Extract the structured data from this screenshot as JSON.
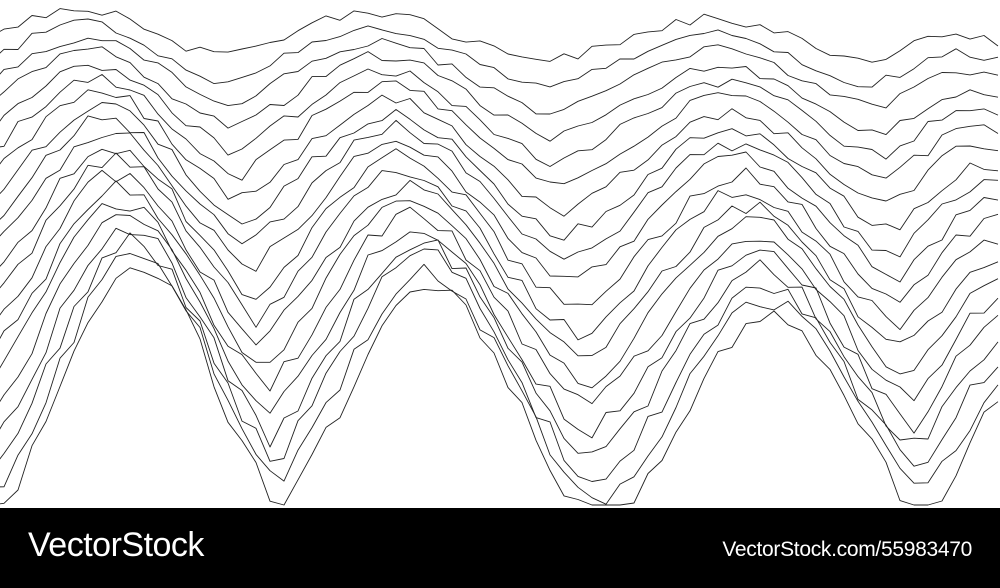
{
  "artwork": {
    "subject": "wireframe mountain wave lines",
    "line_color": "#222222",
    "background": "#ffffff",
    "line_count": 20
  },
  "watermark": {
    "brand": "VectorStock",
    "id_text": "VectorStock.com/55983470",
    "bar_color": "#000000",
    "text_color": "#ffffff"
  }
}
